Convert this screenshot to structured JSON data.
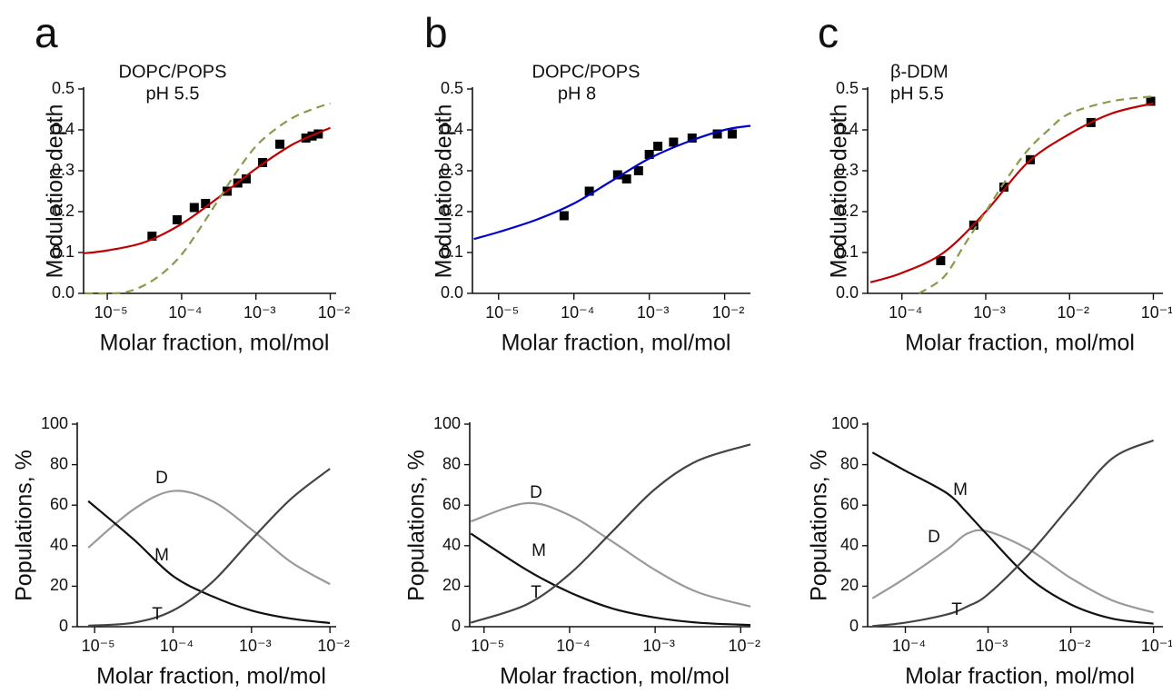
{
  "chart_data": [
    {
      "type": "line",
      "panel_label": "a",
      "title": "DOPC/POPS",
      "subtitle": "pH 5.5",
      "ylabel": "Modulation depth",
      "xlabel": "Molar fraction, mol/mol",
      "log_x": true,
      "xlim": [
        4.8e-06,
        0.012
      ],
      "ylim": [
        0,
        0.5
      ],
      "xticks": [
        {
          "value": 1e-05,
          "label": "10⁻⁵"
        },
        {
          "value": 0.0001,
          "label": "10⁻⁴"
        },
        {
          "value": 0.001,
          "label": "10⁻³"
        },
        {
          "value": 0.01,
          "label": "10⁻²"
        }
      ],
      "yticks": [
        {
          "value": 0,
          "label": "0.0"
        },
        0.1,
        0.2,
        0.3,
        0.4,
        0.5
      ],
      "series": [
        {
          "type": "scatter",
          "color": "#000000",
          "x": [
            4e-05,
            8.7e-05,
            0.000148,
            0.00021,
            0.00041,
            0.00057,
            0.00074,
            0.00123,
            0.0021,
            0.0047,
            0.0057,
            0.0069
          ],
          "values": [
            0.14,
            0.18,
            0.21,
            0.22,
            0.25,
            0.27,
            0.28,
            0.32,
            0.365,
            0.38,
            0.385,
            0.39
          ]
        },
        {
          "type": "line",
          "color": "#c00000",
          "x": [
            4.8e-06,
            1e-05,
            3.16e-05,
            0.0001,
            0.000316,
            0.001,
            0.00316,
            0.01
          ],
          "values": [
            0.098,
            0.105,
            0.125,
            0.17,
            0.235,
            0.305,
            0.365,
            0.405
          ]
        },
        {
          "type": "line",
          "color": "#8a9a4a",
          "dashed": true,
          "x": [
            5e-06,
            1e-05,
            1.78e-05,
            3.16e-05,
            5.62e-05,
            0.0001,
            0.000178,
            0.000316,
            0.000562,
            0.001,
            0.00178,
            0.00316,
            0.00562,
            0.01
          ],
          "values": [
            0,
            0,
            0.003,
            0.02,
            0.05,
            0.095,
            0.16,
            0.23,
            0.3,
            0.36,
            0.4,
            0.43,
            0.45,
            0.465
          ]
        }
      ]
    },
    {
      "type": "line",
      "panel_label": "b",
      "title": "DOPC/POPS",
      "subtitle": "pH 8",
      "ylabel": "Modulation depth",
      "xlabel": "Molar fraction, mol/mol",
      "log_x": true,
      "xlim": [
        4.5e-06,
        0.022
      ],
      "ylim": [
        0,
        0.5
      ],
      "xticks": [
        {
          "value": 1e-05,
          "label": "10⁻⁵"
        },
        {
          "value": 0.0001,
          "label": "10⁻⁴"
        },
        {
          "value": 0.001,
          "label": "10⁻³"
        },
        {
          "value": 0.01,
          "label": "10⁻²"
        }
      ],
      "yticks": [
        {
          "value": 0,
          "label": "0.0"
        },
        0.1,
        0.2,
        0.3,
        0.4,
        0.5
      ],
      "series": [
        {
          "type": "scatter",
          "color": "#000000",
          "x": [
            7.4e-05,
            0.00016,
            0.00038,
            0.0005,
            0.00072,
            0.001,
            0.0013,
            0.0021,
            0.0037,
            0.008,
            0.0126
          ],
          "values": [
            0.19,
            0.25,
            0.29,
            0.28,
            0.3,
            0.34,
            0.36,
            0.37,
            0.38,
            0.39,
            0.39
          ]
        },
        {
          "type": "line",
          "color": "#0000cc",
          "x": [
            4.7e-06,
            1e-05,
            3.16e-05,
            0.0001,
            0.000316,
            0.001,
            0.00316,
            0.01,
            0.022
          ],
          "values": [
            0.133,
            0.15,
            0.18,
            0.22,
            0.275,
            0.33,
            0.37,
            0.4,
            0.41
          ]
        }
      ]
    },
    {
      "type": "line",
      "panel_label": "c",
      "title": "β-DDM",
      "subtitle": "pH 5.5",
      "ylabel": "Modulation depth",
      "xlabel": "Molar fraction, mol/mol",
      "log_x": true,
      "xlim": [
        3.9e-05,
        0.13
      ],
      "ylim": [
        0,
        0.5
      ],
      "xticks": [
        {
          "value": 0.0001,
          "label": "10⁻⁴"
        },
        {
          "value": 0.001,
          "label": "10⁻³"
        },
        {
          "value": 0.01,
          "label": "10⁻²"
        },
        {
          "value": 0.1,
          "label": "10⁻¹"
        }
      ],
      "yticks": [
        {
          "value": 0,
          "label": "0.0"
        },
        0.1,
        0.2,
        0.3,
        0.4,
        0.5
      ],
      "series": [
        {
          "type": "scatter",
          "color": "#000000",
          "x": [
            0.00029,
            0.00072,
            0.00165,
            0.0034,
            0.018,
            0.093
          ],
          "values": [
            0.08,
            0.167,
            0.26,
            0.327,
            0.418,
            0.47
          ]
        },
        {
          "type": "line",
          "color": "#c00000",
          "x": [
            4.2e-05,
            0.0001,
            0.000316,
            0.001,
            0.00316,
            0.01,
            0.0316,
            0.1
          ],
          "values": [
            0.027,
            0.05,
            0.1,
            0.2,
            0.32,
            0.39,
            0.44,
            0.465
          ]
        },
        {
          "type": "line",
          "color": "#8a9a4a",
          "dashed": true,
          "x": [
            0.00016,
            0.000316,
            0.000562,
            0.001,
            0.00178,
            0.00316,
            0.00562,
            0.01,
            0.0316,
            0.1
          ],
          "values": [
            0,
            0.04,
            0.12,
            0.2,
            0.28,
            0.35,
            0.4,
            0.44,
            0.47,
            0.482
          ]
        }
      ]
    },
    {
      "type": "line",
      "ylabel": "Populations, %",
      "xlabel": "Molar fraction, mol/mol",
      "log_x": true,
      "xlim": [
        6e-06,
        0.012
      ],
      "ylim": [
        0,
        100
      ],
      "xticks": [
        {
          "value": 1e-05,
          "label": "10⁻⁵"
        },
        {
          "value": 0.0001,
          "label": "10⁻⁴"
        },
        {
          "value": 0.001,
          "label": "10⁻³"
        },
        {
          "value": 0.01,
          "label": "10⁻²"
        }
      ],
      "yticks": [
        0,
        20,
        40,
        60,
        80,
        100
      ],
      "series": [
        {
          "name": "D",
          "type": "line",
          "color": "#999999",
          "x": [
            8.3e-06,
            3.16e-05,
            0.0001,
            0.000316,
            0.001,
            0.00316,
            0.01
          ],
          "values": [
            39,
            58,
            67,
            62,
            48,
            32,
            21
          ]
        },
        {
          "name": "M",
          "type": "line",
          "color": "#111111",
          "x": [
            8.3e-06,
            3.16e-05,
            0.0001,
            0.000316,
            0.001,
            0.00316,
            0.01
          ],
          "values": [
            62,
            43,
            25,
            15,
            8,
            4,
            1.8
          ]
        },
        {
          "name": "T",
          "type": "line",
          "color": "#444444",
          "x": [
            8.3e-06,
            3.16e-05,
            0.0001,
            0.000316,
            0.001,
            0.00316,
            0.01
          ],
          "values": [
            0.5,
            2,
            8,
            22,
            43,
            63,
            78
          ]
        }
      ]
    },
    {
      "type": "line",
      "ylabel": "Populations, %",
      "xlabel": "Molar fraction, mol/mol",
      "log_x": true,
      "xlim": [
        6.8e-06,
        0.013
      ],
      "ylim": [
        0,
        100
      ],
      "xticks": [
        {
          "value": 1e-05,
          "label": "10⁻⁵"
        },
        {
          "value": 0.0001,
          "label": "10⁻⁴"
        },
        {
          "value": 0.001,
          "label": "10⁻³"
        },
        {
          "value": 0.01,
          "label": "10⁻²"
        }
      ],
      "yticks": [
        0,
        20,
        40,
        60,
        80,
        100
      ],
      "series": [
        {
          "name": "D",
          "type": "line",
          "color": "#999999",
          "x": [
            7e-06,
            3.16e-05,
            0.0001,
            0.000316,
            0.001,
            0.00316,
            0.013
          ],
          "values": [
            52,
            61,
            55,
            42,
            28,
            17,
            10
          ]
        },
        {
          "name": "M",
          "type": "line",
          "color": "#111111",
          "x": [
            7e-06,
            3.16e-05,
            0.0001,
            0.000316,
            0.001,
            0.00316,
            0.013
          ],
          "values": [
            46,
            28,
            17,
            9,
            4.5,
            2,
            0.8
          ]
        },
        {
          "name": "T",
          "type": "line",
          "color": "#444444",
          "x": [
            7e-06,
            3.16e-05,
            0.0001,
            0.000316,
            0.001,
            0.00316,
            0.013
          ],
          "values": [
            2,
            11,
            26,
            47,
            68,
            82,
            90
          ]
        }
      ]
    },
    {
      "type": "line",
      "ylabel": "Populations, %",
      "xlabel": "Molar fraction, mol/mol",
      "log_x": true,
      "xlim": [
        3.5e-05,
        0.13
      ],
      "ylim": [
        0,
        100
      ],
      "xticks": [
        {
          "value": 0.0001,
          "label": "10⁻⁴"
        },
        {
          "value": 0.001,
          "label": "10⁻³"
        },
        {
          "value": 0.01,
          "label": "10⁻²"
        },
        {
          "value": 0.1,
          "label": "10⁻¹"
        }
      ],
      "yticks": [
        0,
        20,
        40,
        60,
        80,
        100
      ],
      "series": [
        {
          "name": "D",
          "type": "line",
          "color": "#999999",
          "x": [
            4e-05,
            0.0001,
            0.000316,
            0.000562,
            0.001,
            0.00316,
            0.01,
            0.0316,
            0.1
          ],
          "values": [
            14,
            24,
            38,
            46,
            47,
            38,
            24,
            13,
            7
          ]
        },
        {
          "name": "M",
          "type": "line",
          "color": "#111111",
          "x": [
            4e-05,
            0.0001,
            0.000316,
            0.000562,
            0.001,
            0.00316,
            0.01,
            0.0316,
            0.1
          ],
          "values": [
            86,
            77,
            66,
            56,
            45,
            24,
            11,
            4,
            1.5
          ]
        },
        {
          "name": "T",
          "type": "line",
          "color": "#444444",
          "x": [
            4e-05,
            0.0001,
            0.000316,
            0.000562,
            0.001,
            0.00316,
            0.01,
            0.0316,
            0.1
          ],
          "values": [
            0.3,
            2,
            6,
            10,
            16,
            36,
            60,
            83,
            92
          ]
        }
      ]
    }
  ]
}
